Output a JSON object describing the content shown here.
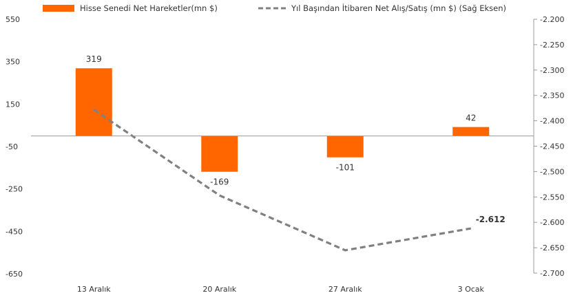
{
  "chart_data": {
    "type": "bar",
    "categories": [
      "13 Aralık",
      "20 Aralık",
      "27 Aralık",
      "3 Ocak"
    ],
    "series": [
      {
        "name": "Hisse Senedi Net Hareketler(mn $)",
        "type": "bar",
        "axis": "left",
        "color": "#FF6600",
        "values": [
          319,
          -169,
          -101,
          42
        ],
        "labels": [
          "319",
          "-169",
          "-101",
          "42"
        ]
      },
      {
        "name": "Yıl Başından İtibaren Net Alış/Satış (mn $) (Sağ Eksen)",
        "type": "line",
        "axis": "right",
        "color": "#808080",
        "line_style": "dashed",
        "values": [
          -2378,
          -2547,
          -2655,
          -2612
        ],
        "labels": [
          "",
          "",
          "",
          "-2.612"
        ]
      }
    ],
    "left_axis": {
      "ylim": [
        -650,
        550
      ],
      "ticks": [
        550,
        350,
        150,
        -50,
        -250,
        -450,
        -650
      ],
      "tick_labels": [
        "550",
        "350",
        "150",
        "-50",
        "-250",
        "-450",
        "-650"
      ]
    },
    "right_axis": {
      "ylim": [
        -2700,
        -2200
      ],
      "ticks": [
        -2200,
        -2250,
        -2300,
        -2350,
        -2400,
        -2450,
        -2500,
        -2550,
        -2600,
        -2650,
        -2700
      ],
      "tick_labels": [
        "-2.200",
        "-2.250",
        "-2.300",
        "-2.350",
        "-2.400",
        "-2.450",
        "-2.500",
        "-2.550",
        "-2.600",
        "-2.650",
        "-2.700"
      ]
    },
    "title": "",
    "xlabel": "",
    "ylabel": "",
    "grid": false,
    "legend_position": "top"
  }
}
